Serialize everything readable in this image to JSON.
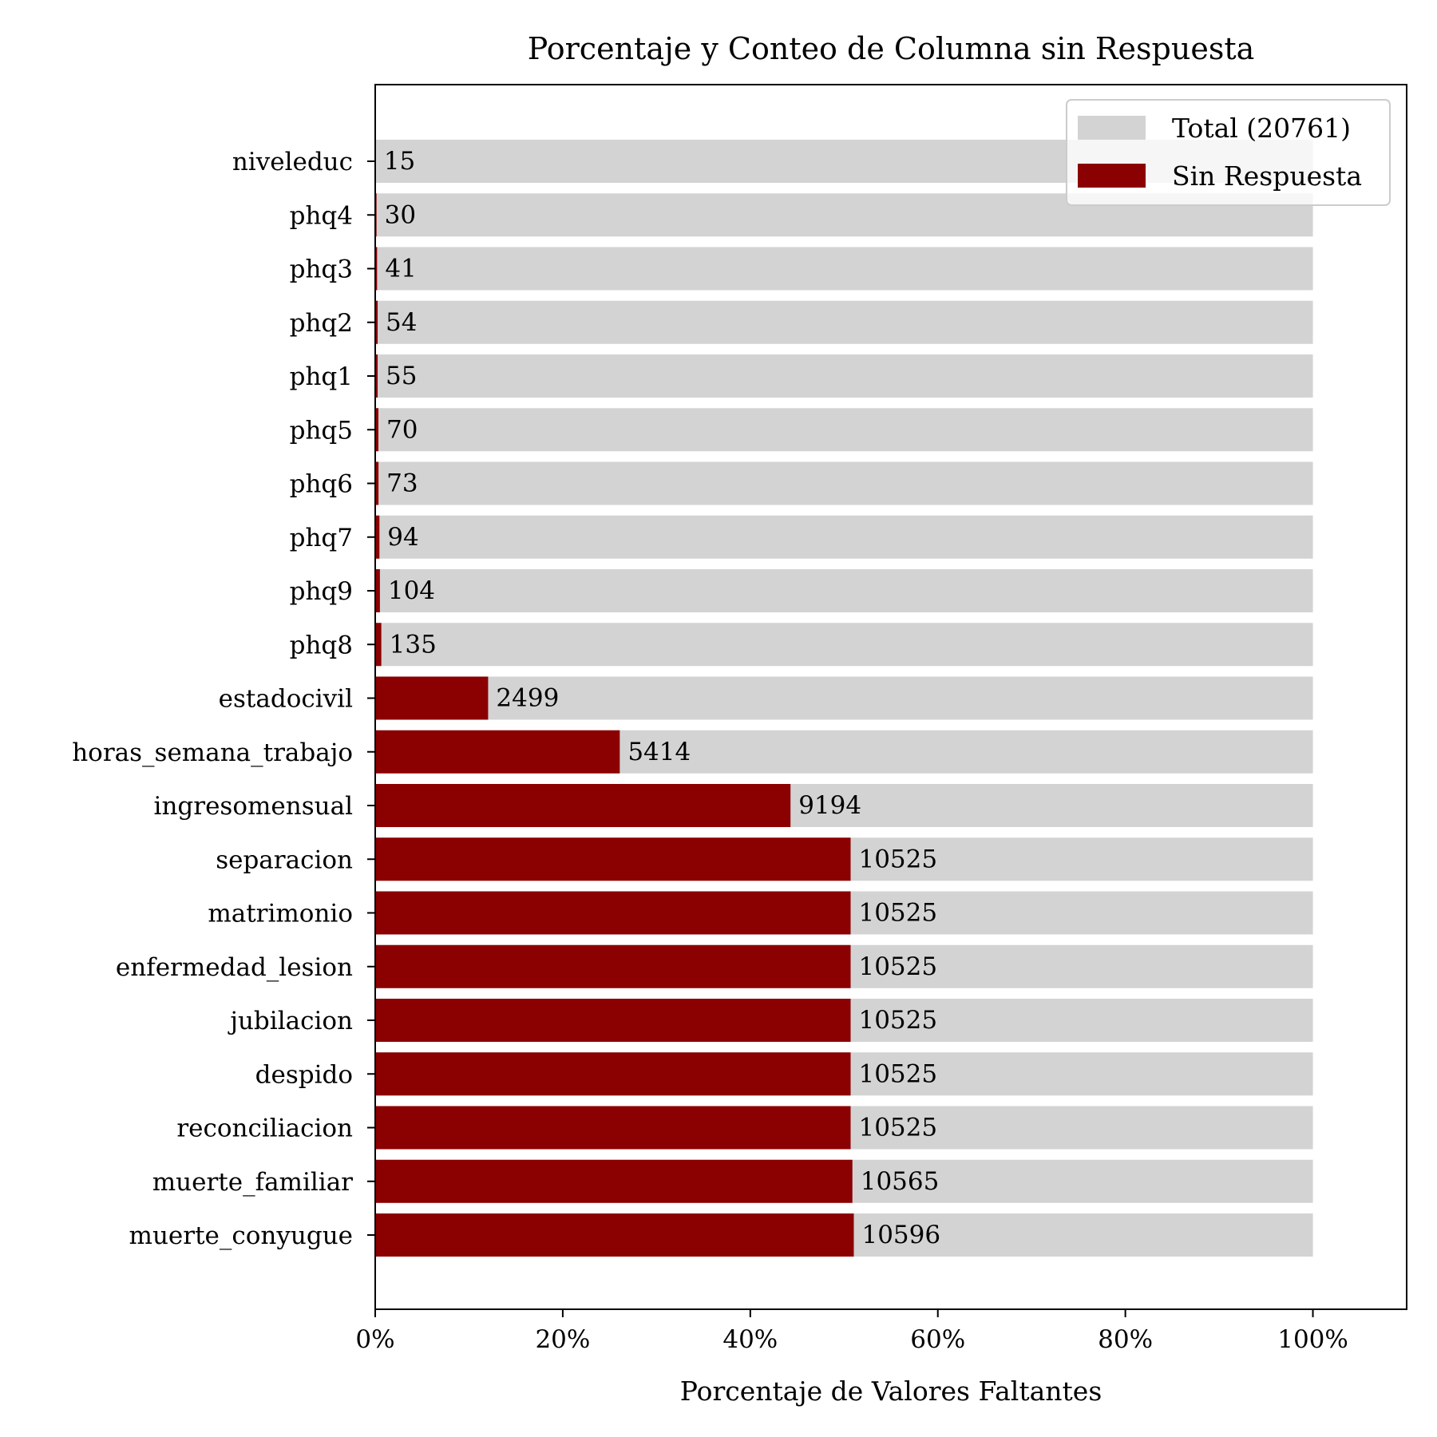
{
  "chart_data": {
    "type": "bar",
    "orientation": "horizontal",
    "title": "Porcentaje y Conteo de Columna sin Respuesta",
    "xlabel": "Porcentaje de Valores Faltantes",
    "ylabel": "",
    "xlim": [
      0,
      110
    ],
    "xticks": [
      0,
      20,
      40,
      60,
      80,
      100
    ],
    "xtick_labels": [
      "0%",
      "20%",
      "40%",
      "60%",
      "80%",
      "100%"
    ],
    "grid": false,
    "legend_position": "top-right",
    "total": 20761,
    "categories": [
      "niveleduc",
      "phq4",
      "phq3",
      "phq2",
      "phq1",
      "phq5",
      "phq6",
      "phq7",
      "phq9",
      "phq8",
      "estadocivil",
      "horas_semana_trabajo",
      "ingresomensual",
      "separacion",
      "matrimonio",
      "enfermedad_lesion",
      "jubilacion",
      "despido",
      "reconciliacion",
      "muerte_familiar",
      "muerte_conyugue"
    ],
    "series": [
      {
        "name": "Total (20761)",
        "color": "#d3d3d3",
        "values": [
          100,
          100,
          100,
          100,
          100,
          100,
          100,
          100,
          100,
          100,
          100,
          100,
          100,
          100,
          100,
          100,
          100,
          100,
          100,
          100,
          100
        ]
      },
      {
        "name": "Sin Respuesta",
        "color": "#8b0000",
        "values": [
          0.07,
          0.14,
          0.2,
          0.26,
          0.26,
          0.34,
          0.35,
          0.45,
          0.5,
          0.65,
          12.04,
          26.08,
          44.29,
          50.7,
          50.7,
          50.7,
          50.7,
          50.7,
          50.7,
          50.89,
          51.04
        ]
      }
    ],
    "bar_labels": [
      "15",
      "30",
      "41",
      "54",
      "55",
      "70",
      "73",
      "94",
      "104",
      "135",
      "2499",
      "5414",
      "9194",
      "10525",
      "10525",
      "10525",
      "10525",
      "10525",
      "10525",
      "10565",
      "10596"
    ]
  }
}
